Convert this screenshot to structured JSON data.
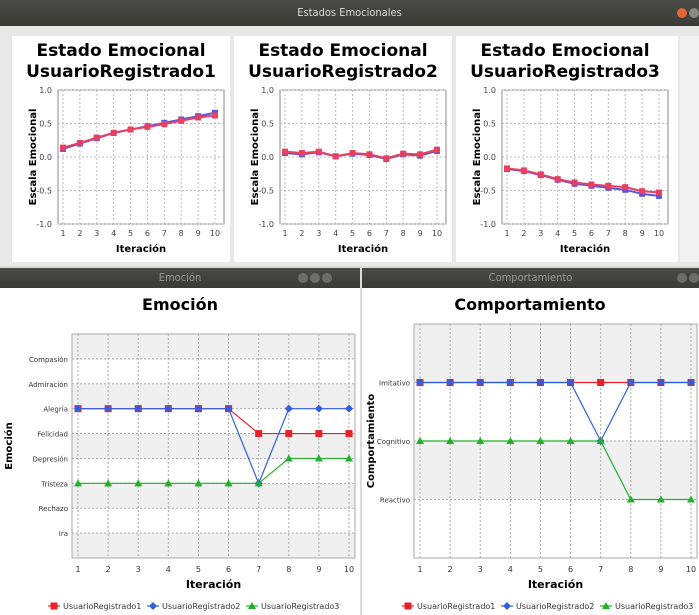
{
  "windows": {
    "top_title": "Estados Emocionales",
    "left_title": "Emoción",
    "right_title": "Comportamiento"
  },
  "colors": {
    "series1": "#e8202a",
    "series2": "#2f5fe0",
    "series3": "#22b02a",
    "titlebar": "#3f3f3c"
  },
  "chart_data": [
    {
      "type": "line",
      "title": "Estado Emocional UsuarioRegistrado1",
      "xlabel": "Iteración",
      "ylabel": "Escala Emocional",
      "x": [
        1,
        2,
        3,
        4,
        5,
        6,
        7,
        8,
        9,
        10
      ],
      "ylim": [
        -1.0,
        1.0
      ],
      "yticks": [
        "1.0",
        "0.5",
        "0.0",
        "-0.5",
        "-1.0"
      ],
      "series": [
        {
          "values": [
            0.12,
            0.2,
            0.28,
            0.36,
            0.41,
            0.46,
            0.51,
            0.56,
            0.61,
            0.66
          ],
          "color": "#5a55e0"
        },
        {
          "values": [
            0.14,
            0.21,
            0.29,
            0.36,
            0.41,
            0.45,
            0.49,
            0.54,
            0.59,
            0.62
          ],
          "color": "#e84060"
        }
      ]
    },
    {
      "type": "line",
      "title": "Estado Emocional UsuarioRegistrado2",
      "xlabel": "Iteración",
      "ylabel": "Escala Emocional",
      "x": [
        1,
        2,
        3,
        4,
        5,
        6,
        7,
        8,
        9,
        10
      ],
      "ylim": [
        -1.0,
        1.0
      ],
      "yticks": [
        "1.0",
        "0.5",
        "0.0",
        "-0.5",
        "-1.0"
      ],
      "series": [
        {
          "values": [
            0.06,
            0.04,
            0.07,
            0.01,
            0.05,
            0.03,
            -0.03,
            0.04,
            0.02,
            0.09
          ],
          "color": "#5a55e0"
        },
        {
          "values": [
            0.08,
            0.06,
            0.08,
            0.01,
            0.06,
            0.04,
            -0.02,
            0.05,
            0.04,
            0.11
          ],
          "color": "#e84060"
        }
      ]
    },
    {
      "type": "line",
      "title": "Estado Emocional UsuarioRegistrado3",
      "xlabel": "Iteración",
      "ylabel": "Escala Emocional",
      "x": [
        1,
        2,
        3,
        4,
        5,
        6,
        7,
        8,
        9,
        10
      ],
      "ylim": [
        -1.0,
        1.0
      ],
      "yticks": [
        "1.0",
        "0.5",
        "0.0",
        "-0.5",
        "-1.0"
      ],
      "series": [
        {
          "values": [
            -0.18,
            -0.21,
            -0.27,
            -0.34,
            -0.4,
            -0.43,
            -0.46,
            -0.49,
            -0.55,
            -0.58
          ],
          "color": "#5a55e0"
        },
        {
          "values": [
            -0.17,
            -0.2,
            -0.26,
            -0.33,
            -0.38,
            -0.41,
            -0.43,
            -0.45,
            -0.51,
            -0.53
          ],
          "color": "#e84060"
        }
      ]
    },
    {
      "type": "line",
      "title": "Emoción",
      "xlabel": "Iteración",
      "ylabel": "Emoción",
      "x": [
        1,
        2,
        3,
        4,
        5,
        6,
        7,
        8,
        9,
        10
      ],
      "categories_y": [
        "Ira",
        "Rechazo",
        "Tristeza",
        "Depresión",
        "Felicidad",
        "Alegría",
        "Admiración",
        "Compasión"
      ],
      "series": [
        {
          "name": "UsuarioRegistrado1",
          "values": [
            "Alegría",
            "Alegría",
            "Alegría",
            "Alegría",
            "Alegría",
            "Alegría",
            "Felicidad",
            "Felicidad",
            "Felicidad",
            "Felicidad"
          ],
          "color": "#e8202a",
          "marker": "square"
        },
        {
          "name": "UsuarioRegistrado2",
          "values": [
            "Alegría",
            "Alegría",
            "Alegría",
            "Alegría",
            "Alegría",
            "Alegría",
            "Tristeza",
            "Alegría",
            "Alegría",
            "Alegría"
          ],
          "color": "#2f5fe0",
          "marker": "diamond"
        },
        {
          "name": "UsuarioRegistrado3",
          "values": [
            "Tristeza",
            "Tristeza",
            "Tristeza",
            "Tristeza",
            "Tristeza",
            "Tristeza",
            "Tristeza",
            "Depresión",
            "Depresión",
            "Depresión"
          ],
          "color": "#22b02a",
          "marker": "triangle"
        }
      ]
    },
    {
      "type": "line",
      "title": "Comportamiento",
      "xlabel": "Iteración",
      "ylabel": "Comportamiento",
      "x": [
        1,
        2,
        3,
        4,
        5,
        6,
        7,
        8,
        9,
        10
      ],
      "categories_y": [
        "Reactivo",
        "Cognitivo",
        "Imitativo"
      ],
      "series": [
        {
          "name": "UsuarioRegistrado1",
          "values": [
            "Imitativo",
            "Imitativo",
            "Imitativo",
            "Imitativo",
            "Imitativo",
            "Imitativo",
            "Imitativo",
            "Imitativo",
            "Imitativo",
            "Imitativo"
          ],
          "color": "#e8202a",
          "marker": "square"
        },
        {
          "name": "UsuarioRegistrado2",
          "values": [
            "Imitativo",
            "Imitativo",
            "Imitativo",
            "Imitativo",
            "Imitativo",
            "Imitativo",
            "Cognitivo",
            "Imitativo",
            "Imitativo",
            "Imitativo"
          ],
          "color": "#2f5fe0",
          "marker": "diamond"
        },
        {
          "name": "UsuarioRegistrado3",
          "values": [
            "Cognitivo",
            "Cognitivo",
            "Cognitivo",
            "Cognitivo",
            "Cognitivo",
            "Cognitivo",
            "Cognitivo",
            "Reactivo",
            "Reactivo",
            "Reactivo"
          ],
          "color": "#22b02a",
          "marker": "triangle"
        }
      ]
    }
  ]
}
